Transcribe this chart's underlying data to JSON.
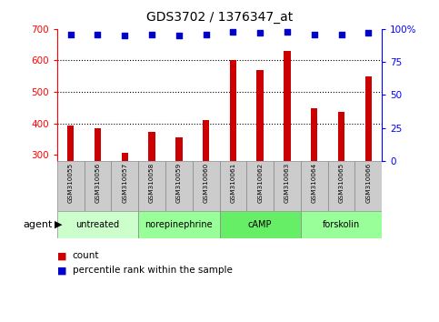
{
  "title": "GDS3702 / 1376347_at",
  "samples": [
    "GSM310055",
    "GSM310056",
    "GSM310057",
    "GSM310058",
    "GSM310059",
    "GSM310060",
    "GSM310061",
    "GSM310062",
    "GSM310063",
    "GSM310064",
    "GSM310065",
    "GSM310066"
  ],
  "counts": [
    393,
    384,
    307,
    372,
    354,
    410,
    601,
    568,
    629,
    447,
    437,
    548
  ],
  "percentiles": [
    96,
    96,
    95,
    96,
    95,
    96,
    98,
    97,
    98,
    96,
    96,
    97
  ],
  "bar_color": "#cc0000",
  "dot_color": "#0000cc",
  "ylim_left": [
    280,
    700
  ],
  "ylim_right": [
    0,
    100
  ],
  "yticks_left": [
    300,
    400,
    500,
    600,
    700
  ],
  "yticks_right": [
    0,
    25,
    50,
    75,
    100
  ],
  "grid_lines": [
    400,
    500,
    600
  ],
  "agent_groups": [
    {
      "label": "untreated",
      "start": 0,
      "end": 3,
      "color": "#ccffcc"
    },
    {
      "label": "norepinephrine",
      "start": 3,
      "end": 6,
      "color": "#99ff99"
    },
    {
      "label": "cAMP",
      "start": 6,
      "end": 9,
      "color": "#66ee66"
    },
    {
      "label": "forskolin",
      "start": 9,
      "end": 12,
      "color": "#99ff99"
    }
  ],
  "agent_label": "agent",
  "legend_count_label": "count",
  "legend_pct_label": "percentile rank within the sample",
  "bar_width": 0.25,
  "count_bar_bottom": 280,
  "sample_box_color": "#cccccc",
  "bg_color": "#ffffff"
}
